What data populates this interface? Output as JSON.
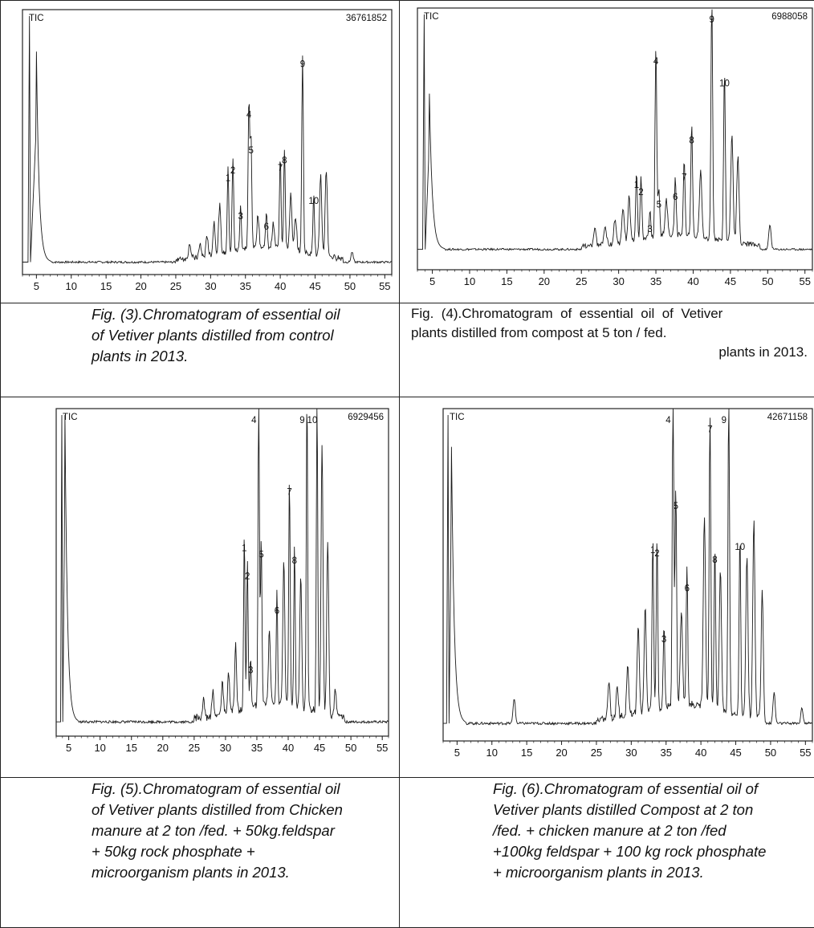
{
  "chart_data": [
    {
      "type": "line",
      "tic_label": "TIC",
      "max_intensity_label": "36761852",
      "x_ticks": [
        "5",
        "10",
        "15",
        "20",
        "25",
        "30",
        "35",
        "40",
        "45",
        "50",
        "55"
      ],
      "xlim": [
        3,
        56
      ],
      "baseline": 0.03,
      "solvent_peak": [
        {
          "x": 4.0,
          "y": 1.0
        },
        {
          "x": 5.0,
          "y": 0.86
        }
      ],
      "peaks": [
        {
          "label": "1",
          "x": 32.5,
          "y": 0.33
        },
        {
          "label": "2",
          "x": 33.2,
          "y": 0.36
        },
        {
          "label": "3",
          "x": 34.3,
          "y": 0.18
        },
        {
          "label": "4",
          "x": 35.5,
          "y": 0.58
        },
        {
          "label": "5",
          "x": 35.8,
          "y": 0.44
        },
        {
          "label": "6",
          "x": 38.0,
          "y": 0.14
        },
        {
          "label": "7",
          "x": 40.0,
          "y": 0.37
        },
        {
          "label": "8",
          "x": 40.6,
          "y": 0.4
        },
        {
          "label": "9",
          "x": 43.2,
          "y": 0.78
        },
        {
          "label": "10",
          "x": 44.8,
          "y": 0.24
        }
      ],
      "minor_peaks": [
        {
          "x": 27.0,
          "y": 0.06
        },
        {
          "x": 28.5,
          "y": 0.05
        },
        {
          "x": 29.5,
          "y": 0.08
        },
        {
          "x": 30.5,
          "y": 0.13
        },
        {
          "x": 31.3,
          "y": 0.19
        },
        {
          "x": 36.8,
          "y": 0.13
        },
        {
          "x": 39.0,
          "y": 0.09
        },
        {
          "x": 41.5,
          "y": 0.22
        },
        {
          "x": 42.2,
          "y": 0.13
        },
        {
          "x": 45.8,
          "y": 0.31
        },
        {
          "x": 46.6,
          "y": 0.34
        },
        {
          "x": 50.3,
          "y": 0.04
        }
      ]
    },
    {
      "type": "line",
      "tic_label": "TIC",
      "max_intensity_label": "6988058",
      "x_ticks": [
        "5",
        "10",
        "15",
        "20",
        "25",
        "30",
        "35",
        "40",
        "45",
        "50",
        "55"
      ],
      "xlim": [
        3,
        56
      ],
      "baseline": 0.05,
      "solvent_peak": [
        {
          "x": 3.9,
          "y": 1.0
        },
        {
          "x": 4.6,
          "y": 0.68
        }
      ],
      "peaks": [
        {
          "label": "1",
          "x": 32.4,
          "y": 0.28
        },
        {
          "label": "2",
          "x": 33.0,
          "y": 0.25
        },
        {
          "label": "3",
          "x": 34.2,
          "y": 0.1
        },
        {
          "label": "4",
          "x": 35.0,
          "y": 0.78
        },
        {
          "label": "5",
          "x": 35.4,
          "y": 0.2
        },
        {
          "label": "6",
          "x": 37.6,
          "y": 0.23
        },
        {
          "label": "7",
          "x": 38.8,
          "y": 0.31
        },
        {
          "label": "8",
          "x": 39.8,
          "y": 0.46
        },
        {
          "label": "9",
          "x": 42.5,
          "y": 0.98
        },
        {
          "label": "10",
          "x": 44.2,
          "y": 0.69
        }
      ],
      "minor_peaks": [
        {
          "x": 26.8,
          "y": 0.07
        },
        {
          "x": 28.2,
          "y": 0.08
        },
        {
          "x": 29.5,
          "y": 0.1
        },
        {
          "x": 30.6,
          "y": 0.14
        },
        {
          "x": 31.4,
          "y": 0.18
        },
        {
          "x": 36.4,
          "y": 0.15
        },
        {
          "x": 41.0,
          "y": 0.27
        },
        {
          "x": 45.2,
          "y": 0.43
        },
        {
          "x": 46.0,
          "y": 0.35
        },
        {
          "x": 50.3,
          "y": 0.1
        }
      ]
    },
    {
      "type": "line",
      "tic_label": "TIC",
      "max_intensity_label": "6929456",
      "x_ticks": [
        "5",
        "10",
        "15",
        "20",
        "25",
        "30",
        "35",
        "40",
        "45",
        "50",
        "55"
      ],
      "xlim": [
        3,
        56
      ],
      "baseline": 0.02,
      "solvent_peak": [
        {
          "x": 3.9,
          "y": 1.0
        },
        {
          "x": 4.4,
          "y": 1.0
        }
      ],
      "peaks": [
        {
          "label": "1",
          "x": 33.0,
          "y": 0.55
        },
        {
          "label": "2",
          "x": 33.5,
          "y": 0.46
        },
        {
          "label": "3",
          "x": 34.0,
          "y": 0.16
        },
        {
          "label": "4",
          "x": 35.3,
          "y": 1.0
        },
        {
          "label": "5",
          "x": 35.7,
          "y": 0.53
        },
        {
          "label": "6",
          "x": 38.2,
          "y": 0.35
        },
        {
          "label": "7",
          "x": 40.2,
          "y": 0.73
        },
        {
          "label": "8",
          "x": 41.0,
          "y": 0.51
        },
        {
          "label": "9",
          "x": 43.0,
          "y": 1.0
        },
        {
          "label": "10",
          "x": 44.6,
          "y": 1.0
        }
      ],
      "minor_peaks": [
        {
          "x": 26.5,
          "y": 0.06
        },
        {
          "x": 28.0,
          "y": 0.08
        },
        {
          "x": 29.5,
          "y": 0.1
        },
        {
          "x": 30.5,
          "y": 0.13
        },
        {
          "x": 31.6,
          "y": 0.21
        },
        {
          "x": 37.0,
          "y": 0.24
        },
        {
          "x": 39.3,
          "y": 0.45
        },
        {
          "x": 42.0,
          "y": 0.42
        },
        {
          "x": 45.4,
          "y": 0.86
        },
        {
          "x": 46.3,
          "y": 0.55
        },
        {
          "x": 47.5,
          "y": 0.08
        }
      ]
    },
    {
      "type": "line",
      "tic_label": "TIC",
      "max_intensity_label": "42671158",
      "x_ticks": [
        "5",
        "10",
        "15",
        "20",
        "25",
        "30",
        "35",
        "40",
        "45",
        "50",
        "55"
      ],
      "xlim": [
        3,
        56
      ],
      "baseline": 0.03,
      "solvent_peak": [
        {
          "x": 3.7,
          "y": 1.0
        },
        {
          "x": 4.2,
          "y": 0.9
        }
      ],
      "peaks": [
        {
          "label": "1",
          "x": 33.1,
          "y": 0.55
        },
        {
          "label": "2",
          "x": 33.7,
          "y": 0.54
        },
        {
          "label": "3",
          "x": 34.7,
          "y": 0.27
        },
        {
          "label": "4",
          "x": 36.0,
          "y": 1.0
        },
        {
          "label": "5",
          "x": 36.4,
          "y": 0.69
        },
        {
          "label": "6",
          "x": 38.0,
          "y": 0.43
        },
        {
          "label": "7",
          "x": 41.3,
          "y": 0.93
        },
        {
          "label": "8",
          "x": 42.0,
          "y": 0.52
        },
        {
          "label": "9",
          "x": 44.0,
          "y": 1.0
        },
        {
          "label": "10",
          "x": 45.6,
          "y": 0.56
        }
      ],
      "minor_peaks": [
        {
          "x": 13.2,
          "y": 0.08
        },
        {
          "x": 26.8,
          "y": 0.11
        },
        {
          "x": 28.0,
          "y": 0.1
        },
        {
          "x": 29.5,
          "y": 0.16
        },
        {
          "x": 31.0,
          "y": 0.28
        },
        {
          "x": 32.0,
          "y": 0.33
        },
        {
          "x": 37.2,
          "y": 0.3
        },
        {
          "x": 40.5,
          "y": 0.6
        },
        {
          "x": 42.8,
          "y": 0.44
        },
        {
          "x": 46.6,
          "y": 0.51
        },
        {
          "x": 47.6,
          "y": 0.62
        },
        {
          "x": 48.8,
          "y": 0.4
        },
        {
          "x": 50.5,
          "y": 0.1
        },
        {
          "x": 54.5,
          "y": 0.05
        }
      ]
    }
  ],
  "captions": {
    "fig3": [
      "Fig. (3).Chromatogram of essential oil",
      "of Vetiver plants distilled from control",
      "plants in 2013."
    ],
    "fig4": [
      "Fig.  (4).Chromatogram  of  essential  oil  of  Vetiver",
      "plants distilled from compost at 5 ton / fed.",
      "plants in 2013."
    ],
    "fig5": [
      "Fig. (5).Chromatogram of essential oil",
      "of Vetiver plants distilled from Chicken",
      "manure at 2 ton /fed. + 50kg.feldspar",
      "+ 50kg rock phosphate +",
      "microorganism plants in 2013."
    ],
    "fig6": [
      "Fig. (6).Chromatogram of essential oil of",
      "Vetiver plants distilled Compost at 2 ton",
      "/fed. + chicken manure at 2 ton /fed",
      "+100kg feldspar + 100 kg rock phosphate",
      "+ microorganism plants in 2013."
    ]
  }
}
